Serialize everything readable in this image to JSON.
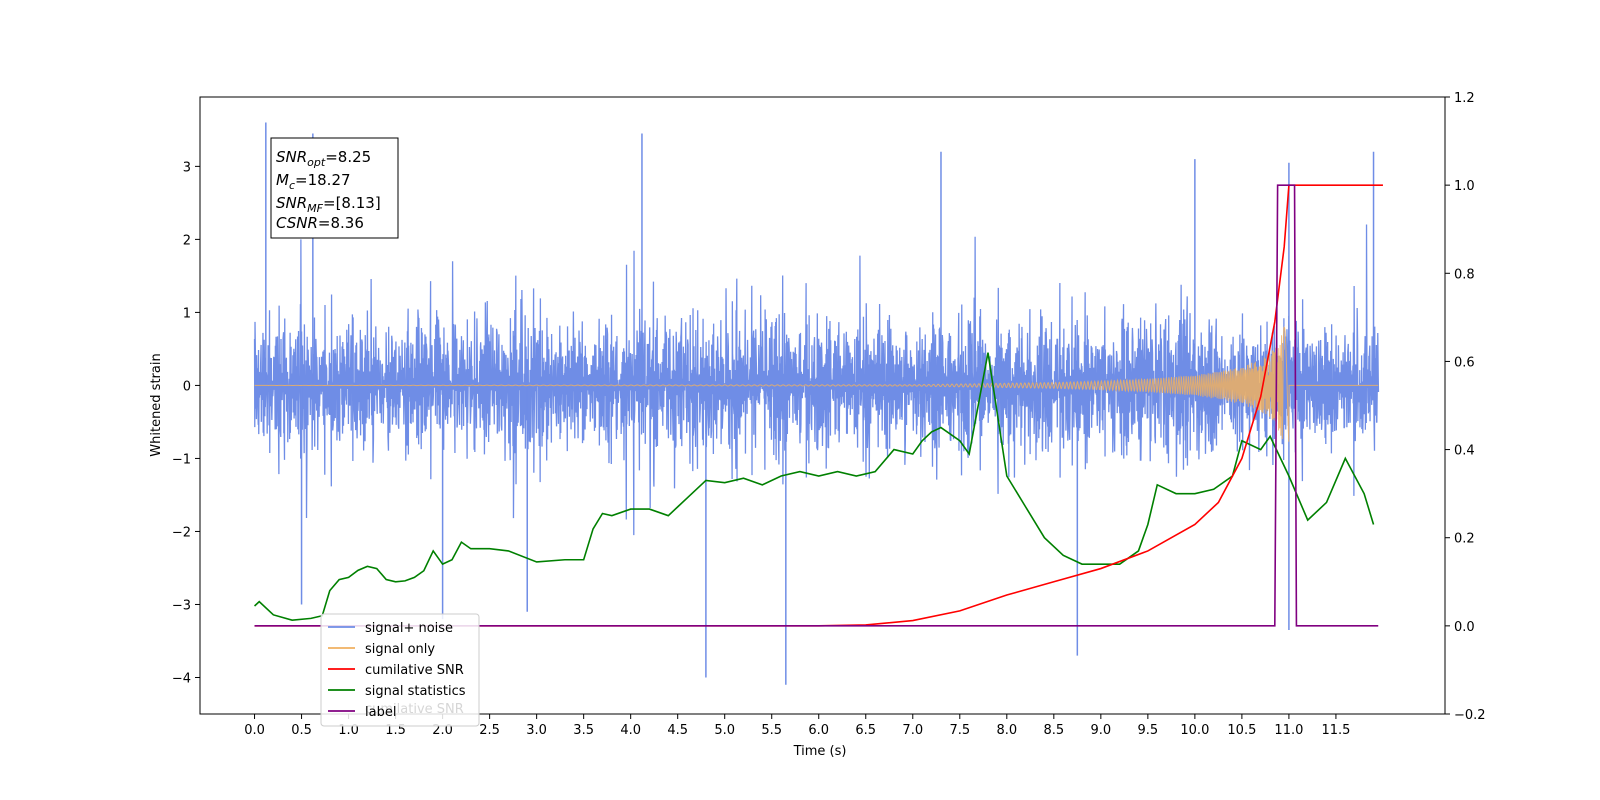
{
  "chart_data": {
    "type": "line",
    "title": "",
    "xlabel": "Time (s)",
    "ylabel": "Whitened strain",
    "xlim": [
      -0.58,
      12.66
    ],
    "ylim": [
      -4.5,
      3.95
    ],
    "y2lim": [
      -0.2,
      1.2
    ],
    "x_ticks": [
      "0.0",
      "0.5",
      "1.0",
      "1.5",
      "2.0",
      "2.5",
      "3.0",
      "3.5",
      "4.0",
      "4.5",
      "5.0",
      "5.5",
      "6.0",
      "6.5",
      "7.0",
      "7.5",
      "8.0",
      "8.5",
      "9.0",
      "9.5",
      "10.0",
      "10.5",
      "11.0",
      "11.5"
    ],
    "y_ticks": [
      -4,
      -3,
      -2,
      -1,
      0,
      1,
      2,
      3
    ],
    "y_tick_labels": [
      "−4",
      "−3",
      "−2",
      "−1",
      "0",
      "1",
      "2",
      "3"
    ],
    "y2_ticks": [
      "−0.2",
      "0.0",
      "0.2",
      "0.4",
      "0.6",
      "0.8",
      "1.0",
      "1.2"
    ],
    "grid": false,
    "legend_position": "lower-left",
    "annotation": {
      "snr_opt": "=8.25",
      "mc": "=18.27",
      "snr_mf": "=[8.13]",
      "csnr": "=8.36"
    },
    "colors": {
      "signal_noise": "#6f8de6",
      "signal_only": "#f0b060",
      "cumulative_snr": "#ff0000",
      "signal_statistics": "#008000",
      "label": "#800080"
    },
    "series": [
      {
        "name": "signal+ noise",
        "axis": "left",
        "description_values": "noise band approx ±1.5 with spikes to +3.6 / -4.1",
        "spikes": [
          [
            0.12,
            3.6
          ],
          [
            0.62,
            3.45
          ],
          [
            4.12,
            3.45
          ],
          [
            7.3,
            3.2
          ],
          [
            10.0,
            3.1
          ],
          [
            11.0,
            3.05
          ],
          [
            11.9,
            3.2
          ],
          [
            0.5,
            -3.0
          ],
          [
            2.0,
            -3.2
          ],
          [
            2.9,
            -3.1
          ],
          [
            4.8,
            -4.0
          ],
          [
            5.65,
            -4.1
          ],
          [
            8.75,
            -3.7
          ],
          [
            11.0,
            -3.35
          ]
        ],
        "chirp_envelope": [
          [
            7.0,
            0.0
          ],
          [
            8.0,
            0.03
          ],
          [
            9.0,
            0.06
          ],
          [
            9.5,
            0.09
          ],
          [
            10.0,
            0.14
          ],
          [
            10.5,
            0.25
          ],
          [
            10.8,
            0.45
          ],
          [
            11.0,
            1.0
          ]
        ]
      },
      {
        "name": "signal only",
        "axis": "left",
        "chirp_envelope": [
          [
            0.0,
            0.0
          ],
          [
            7.0,
            0.01
          ],
          [
            7.5,
            0.02
          ],
          [
            8.0,
            0.03
          ],
          [
            8.5,
            0.04
          ],
          [
            9.0,
            0.06
          ],
          [
            9.5,
            0.09
          ],
          [
            10.0,
            0.14
          ],
          [
            10.3,
            0.2
          ],
          [
            10.5,
            0.26
          ],
          [
            10.7,
            0.36
          ],
          [
            10.85,
            0.5
          ],
          [
            10.95,
            0.8
          ],
          [
            11.0,
            1.05
          ],
          [
            11.0,
            0.0
          ],
          [
            12.0,
            0.0
          ]
        ]
      },
      {
        "name": "cumilative SNR",
        "axis": "right",
        "x": [
          0.0,
          6.0,
          6.5,
          7.0,
          7.5,
          8.0,
          8.5,
          9.0,
          9.5,
          10.0,
          10.25,
          10.5,
          10.7,
          10.85,
          10.95,
          11.0,
          12.0
        ],
        "y": [
          0.0,
          0.0,
          0.002,
          0.012,
          0.034,
          0.07,
          0.1,
          0.13,
          0.17,
          0.23,
          0.28,
          0.38,
          0.52,
          0.69,
          0.86,
          1.0,
          1.0
        ]
      },
      {
        "name": "signal statistics",
        "axis": "right",
        "x": [
          0.0,
          0.05,
          0.2,
          0.4,
          0.6,
          0.72,
          0.8,
          0.9,
          1.0,
          1.1,
          1.2,
          1.3,
          1.4,
          1.5,
          1.6,
          1.7,
          1.8,
          1.9,
          2.0,
          2.1,
          2.2,
          2.3,
          2.5,
          2.7,
          3.0,
          3.3,
          3.5,
          3.6,
          3.7,
          3.8,
          4.0,
          4.2,
          4.4,
          4.5,
          4.6,
          4.8,
          5.0,
          5.2,
          5.4,
          5.6,
          5.8,
          6.0,
          6.2,
          6.4,
          6.6,
          6.8,
          7.0,
          7.1,
          7.2,
          7.3,
          7.5,
          7.6,
          7.8,
          8.0,
          8.2,
          8.4,
          8.6,
          8.8,
          9.0,
          9.2,
          9.4,
          9.5,
          9.6,
          9.8,
          10.0,
          10.2,
          10.4,
          10.5,
          10.7,
          10.8,
          11.0,
          11.2,
          11.4,
          11.6,
          11.8,
          11.9
        ],
        "y": [
          0.045,
          0.055,
          0.025,
          0.013,
          0.017,
          0.023,
          0.08,
          0.105,
          0.11,
          0.126,
          0.135,
          0.13,
          0.105,
          0.1,
          0.102,
          0.11,
          0.125,
          0.17,
          0.14,
          0.15,
          0.19,
          0.175,
          0.175,
          0.17,
          0.145,
          0.15,
          0.15,
          0.22,
          0.255,
          0.25,
          0.265,
          0.265,
          0.25,
          0.27,
          0.29,
          0.33,
          0.325,
          0.335,
          0.32,
          0.34,
          0.35,
          0.34,
          0.35,
          0.34,
          0.35,
          0.4,
          0.39,
          0.42,
          0.44,
          0.45,
          0.42,
          0.39,
          0.62,
          0.34,
          0.27,
          0.2,
          0.16,
          0.14,
          0.14,
          0.14,
          0.17,
          0.23,
          0.32,
          0.3,
          0.3,
          0.31,
          0.34,
          0.42,
          0.4,
          0.43,
          0.34,
          0.24,
          0.28,
          0.38,
          0.3,
          0.23
        ]
      },
      {
        "name": "label",
        "axis": "right",
        "x": [
          0.0,
          10.85,
          10.88,
          11.06,
          11.08,
          11.95
        ],
        "y": [
          0.0,
          0.0,
          1.0,
          1.0,
          0.0,
          0.0
        ]
      }
    ],
    "legend_entries": [
      "signal+ noise",
      "signal only",
      "cumilative SNR",
      "signal statistics",
      "label"
    ],
    "legend_hidden_text": "cumilative SNR"
  }
}
